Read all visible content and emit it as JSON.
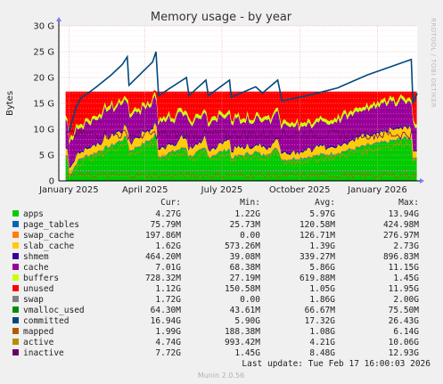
{
  "chart_data": {
    "type": "area",
    "title": "Memory usage - by year",
    "ylabel": "Bytes",
    "ylim": [
      0,
      30
    ],
    "yunit": "G",
    "yticks": [
      "0",
      "5 G",
      "10 G",
      "15 G",
      "20 G",
      "25 G",
      "30 G"
    ],
    "xlim": [
      "2024-12-20",
      "2026-02-17"
    ],
    "xticks": [
      {
        "date": "2025-01-01",
        "label": "January 2025"
      },
      {
        "date": "2025-04-01",
        "label": "April 2025"
      },
      {
        "date": "2025-07-01",
        "label": "July 2025"
      },
      {
        "date": "2025-10-01",
        "label": "October 2025"
      },
      {
        "date": "2026-01-01",
        "label": "January 2026"
      }
    ],
    "grid": true,
    "legend_columns": [
      "Cur:",
      "Min:",
      "Avg:",
      "Max:"
    ],
    "series": [
      {
        "name": "apps",
        "color": "#00cc00",
        "cur": "4.27G",
        "min": "1.22G",
        "avg": "5.97G",
        "max": "13.94G"
      },
      {
        "name": "page_tables",
        "color": "#0066b3",
        "cur": "75.79M",
        "min": "25.73M",
        "avg": "120.58M",
        "max": "424.98M"
      },
      {
        "name": "swap_cache",
        "color": "#ff8000",
        "cur": "197.86M",
        "min": "0.00",
        "avg": "126.71M",
        "max": "276.97M"
      },
      {
        "name": "slab_cache",
        "color": "#ffcc00",
        "cur": "1.62G",
        "min": "573.26M",
        "avg": "1.39G",
        "max": "2.73G"
      },
      {
        "name": "shmem",
        "color": "#330099",
        "cur": "464.20M",
        "min": "39.08M",
        "avg": "339.27M",
        "max": "896.83M"
      },
      {
        "name": "cache",
        "color": "#990099",
        "cur": "7.01G",
        "min": "68.38M",
        "avg": "5.86G",
        "max": "11.15G"
      },
      {
        "name": "buffers",
        "color": "#ccff00",
        "cur": "728.32M",
        "min": "27.19M",
        "avg": "619.88M",
        "max": "1.45G"
      },
      {
        "name": "unused",
        "color": "#ff0000",
        "cur": "1.12G",
        "min": "150.58M",
        "avg": "1.05G",
        "max": "11.95G"
      },
      {
        "name": "swap",
        "color": "#808080",
        "cur": "1.72G",
        "min": "0.00",
        "avg": "1.86G",
        "max": "2.00G"
      },
      {
        "name": "vmalloc_used",
        "color": "#008f00",
        "cur": "64.30M",
        "min": "43.61M",
        "avg": "66.67M",
        "max": "75.50M"
      },
      {
        "name": "committed",
        "color": "#00487d",
        "cur": "16.94G",
        "min": "5.90G",
        "avg": "17.32G",
        "max": "26.43G"
      },
      {
        "name": "mapped",
        "color": "#b35a00",
        "cur": "1.99G",
        "min": "188.38M",
        "avg": "1.08G",
        "max": "6.14G"
      },
      {
        "name": "active",
        "color": "#b38f00",
        "cur": "4.74G",
        "min": "993.42M",
        "avg": "4.21G",
        "max": "10.06G"
      },
      {
        "name": "inactive",
        "color": "#6b006b",
        "cur": "7.72G",
        "min": "1.45G",
        "avg": "8.48G",
        "max": "12.93G"
      }
    ],
    "committed_points": [
      [
        "2025-01-01",
        9.5
      ],
      [
        "2025-01-10",
        14.5
      ],
      [
        "2025-01-15",
        16.0
      ],
      [
        "2025-02-01",
        18.0
      ],
      [
        "2025-02-20",
        20.5
      ],
      [
        "2025-03-05",
        22.5
      ],
      [
        "2025-03-11",
        24.0
      ],
      [
        "2025-03-13",
        18.5
      ],
      [
        "2025-04-10",
        23.0
      ],
      [
        "2025-04-14",
        25.0
      ],
      [
        "2025-04-17",
        16.5
      ],
      [
        "2025-05-20",
        20.0
      ],
      [
        "2025-05-23",
        16.5
      ],
      [
        "2025-06-12",
        19.5
      ],
      [
        "2025-06-15",
        16.5
      ],
      [
        "2025-07-10",
        19.5
      ],
      [
        "2025-07-12",
        16.2
      ],
      [
        "2025-08-10",
        18.2
      ],
      [
        "2025-08-18",
        17.0
      ],
      [
        "2025-09-05",
        19.5
      ],
      [
        "2025-09-10",
        15.5
      ],
      [
        "2025-10-10",
        16.5
      ],
      [
        "2025-11-15",
        18.0
      ],
      [
        "2025-12-20",
        20.5
      ],
      [
        "2026-02-10",
        23.5
      ],
      [
        "2026-02-12",
        15.0
      ],
      [
        "2026-02-17",
        16.9
      ]
    ],
    "unused_top_band": [
      16.0,
      17.5
    ]
  },
  "footer": {
    "last_update": "Last update: Tue Feb 17 16:00:03 2026",
    "generator": "Munin 2.0.56",
    "side_text": "RRDTOOL / TOBI OETIKER"
  }
}
